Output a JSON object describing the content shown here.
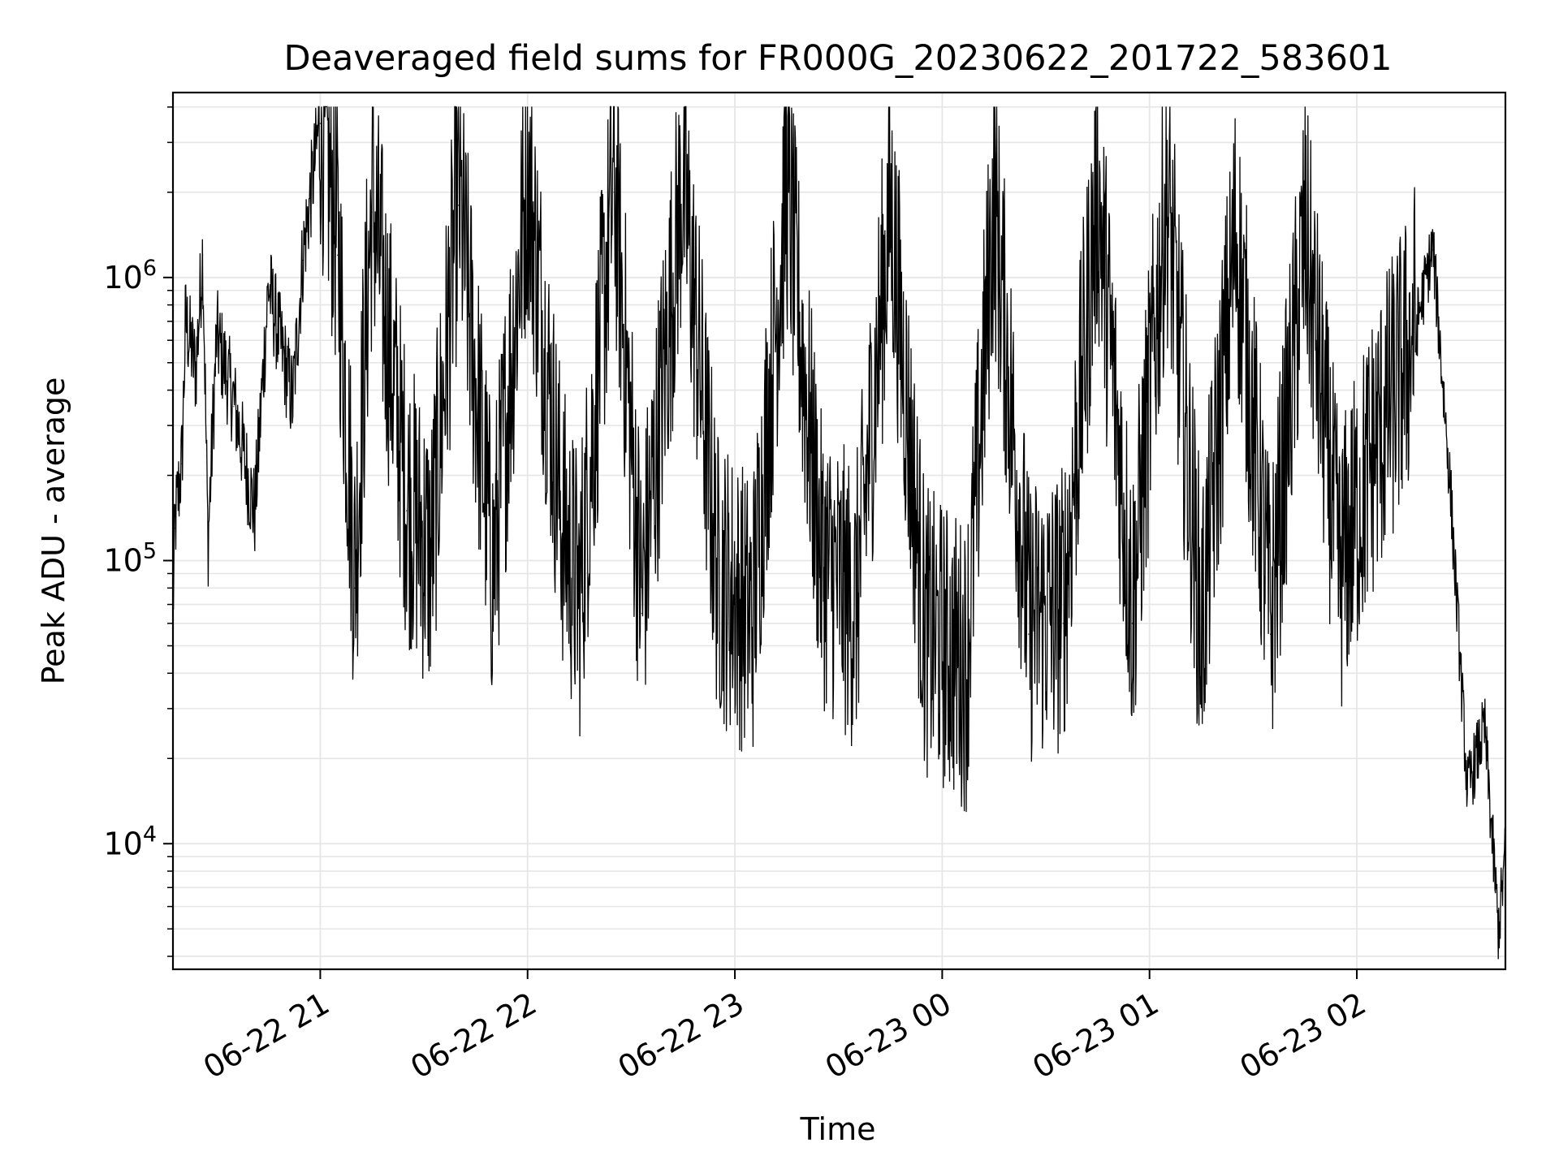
{
  "chart_data": {
    "type": "line",
    "title": "Deaveraged field sums for FR000G_20230622_201722_583601",
    "xlabel": "Time",
    "ylabel": "Peak ADU - average",
    "yscale": "log",
    "ylim": [
      3600,
      4500000
    ],
    "xlim": [
      "2023-06-22 20:17:22",
      "2023-06-23 02:43:00"
    ],
    "x_ticks": [
      {
        "t": "2023-06-22 21:00",
        "label": "06-22 21"
      },
      {
        "t": "2023-06-22 22:00",
        "label": "06-22 22"
      },
      {
        "t": "2023-06-22 23:00",
        "label": "06-22 23"
      },
      {
        "t": "2023-06-23 00:00",
        "label": "06-23 00"
      },
      {
        "t": "2023-06-23 01:00",
        "label": "06-23 01"
      },
      {
        "t": "2023-06-23 02:00",
        "label": "06-23 02"
      }
    ],
    "y_ticks": [
      {
        "value": 10000,
        "base": "10",
        "exp": "4"
      },
      {
        "value": 100000,
        "base": "10",
        "exp": "5"
      },
      {
        "value": 1000000,
        "base": "10",
        "exp": "6"
      }
    ],
    "grid": true,
    "line_color": "#000000",
    "grid_color": "#e6e6e6",
    "series": [
      {
        "points": [
          [
            "2023-06-22 20:17:22",
            65000
          ],
          [
            "2023-06-22 20:18:00",
            130000
          ],
          [
            "2023-06-22 20:20:00",
            220000
          ],
          [
            "2023-06-22 20:21:00",
            680000
          ],
          [
            "2023-06-22 20:24:00",
            450000
          ],
          [
            "2023-06-22 20:26:00",
            1200000
          ],
          [
            "2023-06-22 20:27:30",
            110000
          ],
          [
            "2023-06-22 20:30:00",
            600000
          ],
          [
            "2023-06-22 20:35:00",
            350000
          ],
          [
            "2023-06-22 20:41:00",
            140000
          ],
          [
            "2023-06-22 20:45:00",
            900000
          ],
          [
            "2023-06-22 20:52:00",
            350000
          ],
          [
            "2023-06-22 20:55:00",
            1150000
          ],
          [
            "2023-06-22 21:00:00",
            3500000
          ],
          [
            "2023-06-22 21:05:00",
            1200000
          ],
          [
            "2023-06-22 21:10:00",
            80000
          ],
          [
            "2023-06-22 21:15:00",
            1700000
          ],
          [
            "2023-06-22 21:25:00",
            150000
          ],
          [
            "2023-06-22 21:32:00",
            90000
          ],
          [
            "2023-06-22 21:40:00",
            1800000
          ],
          [
            "2023-06-22 21:50:00",
            80000
          ],
          [
            "2023-06-22 22:00:00",
            2100000
          ],
          [
            "2023-06-22 22:10:00",
            120000
          ],
          [
            "2023-06-22 22:15:00",
            65000
          ],
          [
            "2023-06-22 22:25:00",
            2000000
          ],
          [
            "2023-06-22 22:33:00",
            65000
          ],
          [
            "2023-06-22 22:45:00",
            2000000
          ],
          [
            "2023-06-22 22:55:00",
            80000
          ],
          [
            "2023-06-22 23:05:00",
            55000
          ],
          [
            "2023-06-22 23:15:00",
            1900000
          ],
          [
            "2023-06-22 23:25:00",
            90000
          ],
          [
            "2023-06-22 23:35:00",
            60000
          ],
          [
            "2023-06-22 23:45:00",
            1600000
          ],
          [
            "2023-06-22 23:55:00",
            50000
          ],
          [
            "2023-06-23 00:07:00",
            38000
          ],
          [
            "2023-06-23 00:15:00",
            1700000
          ],
          [
            "2023-06-23 00:25:00",
            55000
          ],
          [
            "2023-06-23 00:35:00",
            60000
          ],
          [
            "2023-06-23 00:45:00",
            1800000
          ],
          [
            "2023-06-23 00:55:00",
            60000
          ],
          [
            "2023-06-23 01:05:00",
            1800000
          ],
          [
            "2023-06-23 01:15:00",
            50000
          ],
          [
            "2023-06-23 01:25:00",
            1300000
          ],
          [
            "2023-06-23 01:35:00",
            55000
          ],
          [
            "2023-06-23 01:45:00",
            1300000
          ],
          [
            "2023-06-23 01:55:00",
            80000
          ],
          [
            "2023-06-23 02:05:00",
            220000
          ],
          [
            "2023-06-23 02:15:00",
            480000
          ],
          [
            "2023-06-23 02:22:00",
            1250000
          ],
          [
            "2023-06-23 02:27:00",
            180000
          ],
          [
            "2023-06-23 02:32:00",
            15000
          ],
          [
            "2023-06-23 02:37:00",
            25000
          ],
          [
            "2023-06-23 02:41:00",
            4800
          ],
          [
            "2023-06-23 02:43:00",
            9000
          ]
        ]
      }
    ]
  }
}
